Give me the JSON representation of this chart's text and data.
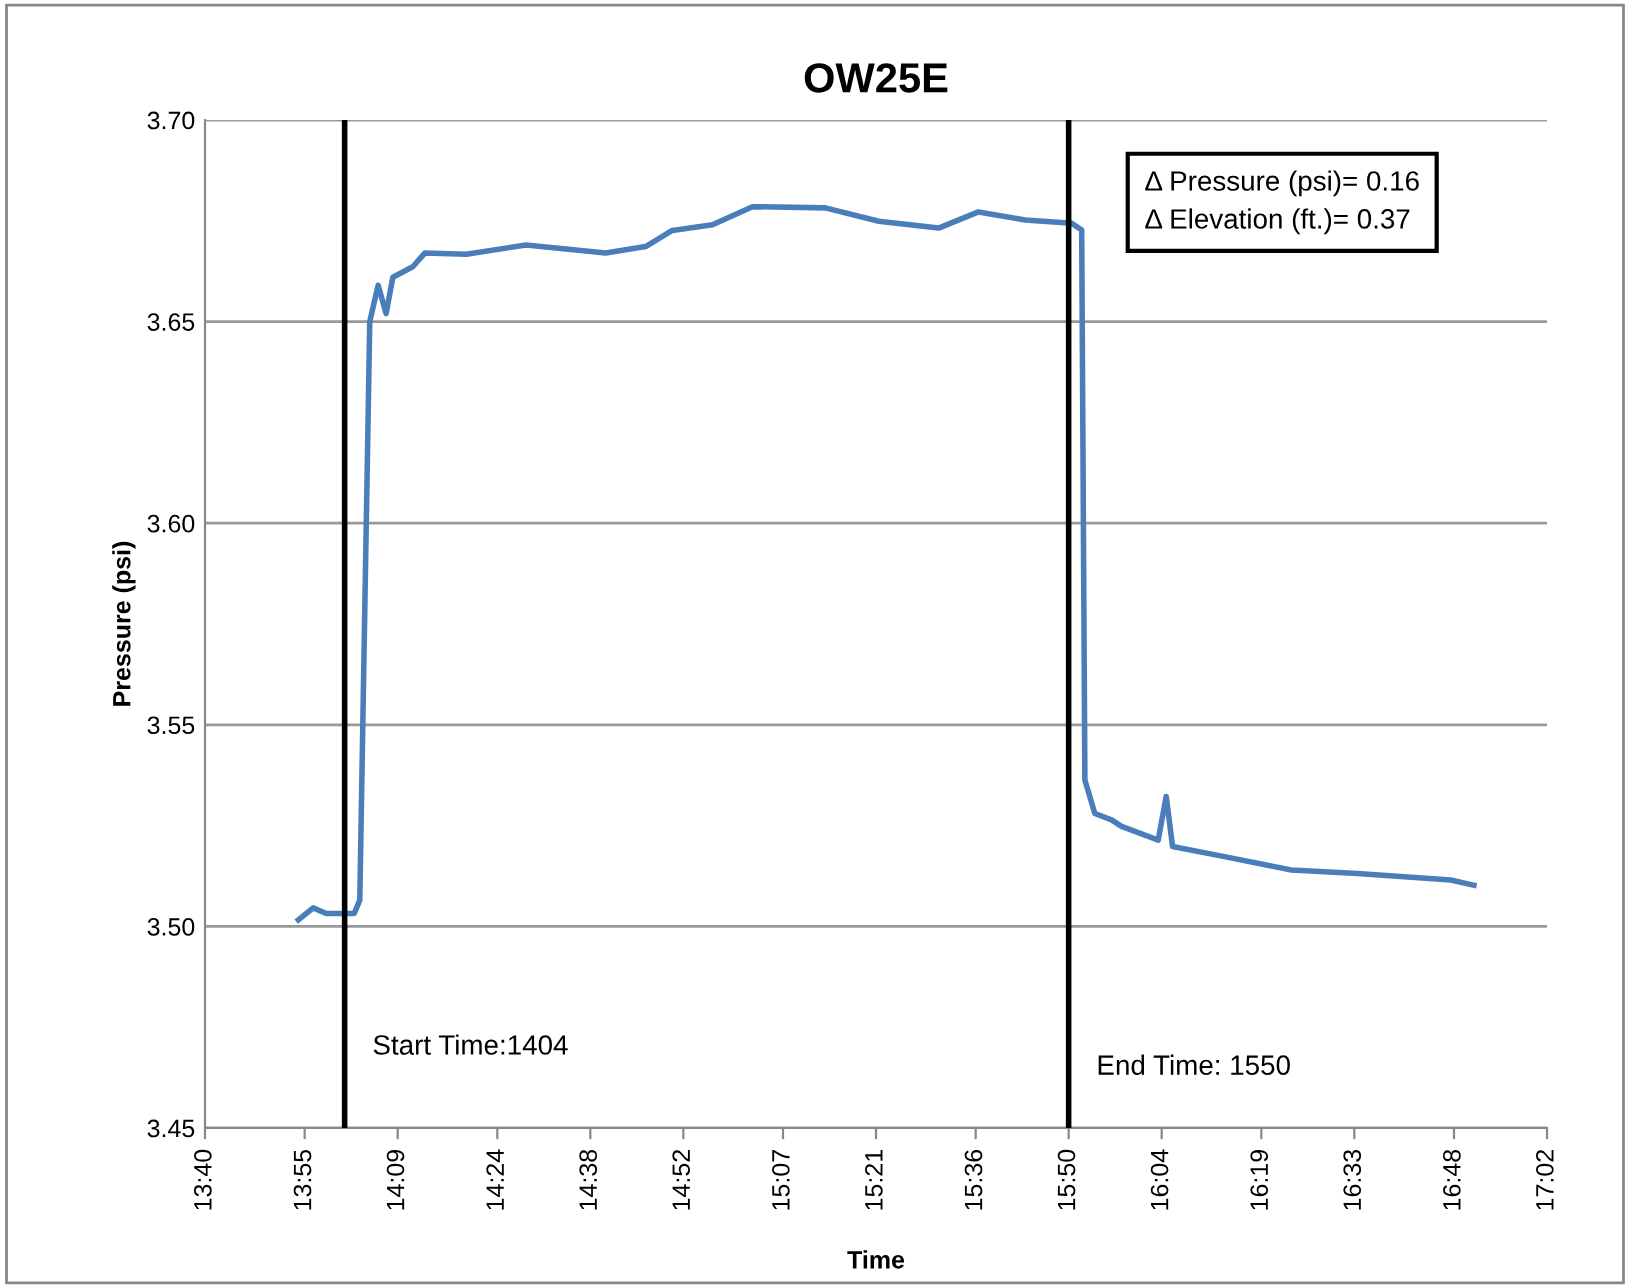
{
  "chart_data": {
    "type": "line",
    "title": "OW25E",
    "xlabel": "Time",
    "ylabel": "Pressure (psi)",
    "series": [
      {
        "color": "#4a7ebb",
        "x": [
          13.901,
          13.938,
          13.971,
          14.041,
          14.055,
          14.08,
          14.101,
          14.121,
          14.138,
          14.188,
          14.218,
          14.322,
          14.472,
          14.572,
          14.672,
          14.772,
          14.839,
          14.94,
          15.04,
          15.223,
          15.357,
          15.507,
          15.607,
          15.724,
          15.841,
          15.866,
          15.874,
          15.899,
          15.941,
          15.966,
          16.058,
          16.078,
          16.094,
          16.224,
          16.392,
          16.558,
          16.675,
          16.792,
          16.85
        ],
        "values": [
          3.5016,
          3.5046,
          3.5032,
          3.5032,
          3.5065,
          3.65,
          3.659,
          3.652,
          3.661,
          3.6636,
          3.667,
          3.6667,
          3.669,
          3.668,
          3.667,
          3.6686,
          3.6726,
          3.674,
          3.6785,
          3.6782,
          3.6749,
          3.6732,
          3.6772,
          3.6752,
          3.6744,
          3.6727,
          3.5363,
          3.528,
          3.5264,
          3.5248,
          3.5214,
          3.5322,
          3.5198,
          3.5173,
          3.514,
          3.5131,
          3.5123,
          3.5115,
          3.5102
        ]
      }
    ],
    "xlim": [
      13.6667,
      17.0333
    ],
    "xticks": [
      {
        "value": 13.6667,
        "label": "13:40"
      },
      {
        "value": 13.9167,
        "label": "13:55"
      },
      {
        "value": 14.15,
        "label": "14:09"
      },
      {
        "value": 14.4,
        "label": "14:24"
      },
      {
        "value": 14.6333,
        "label": "14:38"
      },
      {
        "value": 14.8667,
        "label": "14:52"
      },
      {
        "value": 15.1167,
        "label": "15:07"
      },
      {
        "value": 15.35,
        "label": "15:21"
      },
      {
        "value": 15.6,
        "label": "15:36"
      },
      {
        "value": 15.8333,
        "label": "15:50"
      },
      {
        "value": 16.0667,
        "label": "16:04"
      },
      {
        "value": 16.3167,
        "label": "16:19"
      },
      {
        "value": 16.55,
        "label": "16:33"
      },
      {
        "value": 16.8,
        "label": "16:48"
      },
      {
        "value": 17.0333,
        "label": "17:02"
      }
    ],
    "ylim": [
      3.45,
      3.7
    ],
    "yticks": [
      {
        "value": 3.45,
        "label": "3.45"
      },
      {
        "value": 3.5,
        "label": "3.50"
      },
      {
        "value": 3.55,
        "label": "3.55"
      },
      {
        "value": 3.6,
        "label": "3.60"
      },
      {
        "value": 3.65,
        "label": "3.65"
      },
      {
        "value": 3.7,
        "label": "3.70"
      }
    ],
    "grid": "y",
    "legend": false,
    "marker": "none",
    "line_style": "solid",
    "ref_lines": [
      {
        "axis": "x",
        "value": 14.017,
        "color": "#000000"
      },
      {
        "axis": "x",
        "value": 15.8333,
        "color": "#000000"
      }
    ],
    "annotations": [
      "Δ Pressure (psi)= 0.16\nΔ Elevation (ft.)= 0.37",
      {
        "text": "Start Time:1404",
        "x": 14.017,
        "y": 3.47
      },
      {
        "text": "End Time: 1550",
        "x": 15.8333,
        "y": 3.465
      }
    ]
  }
}
